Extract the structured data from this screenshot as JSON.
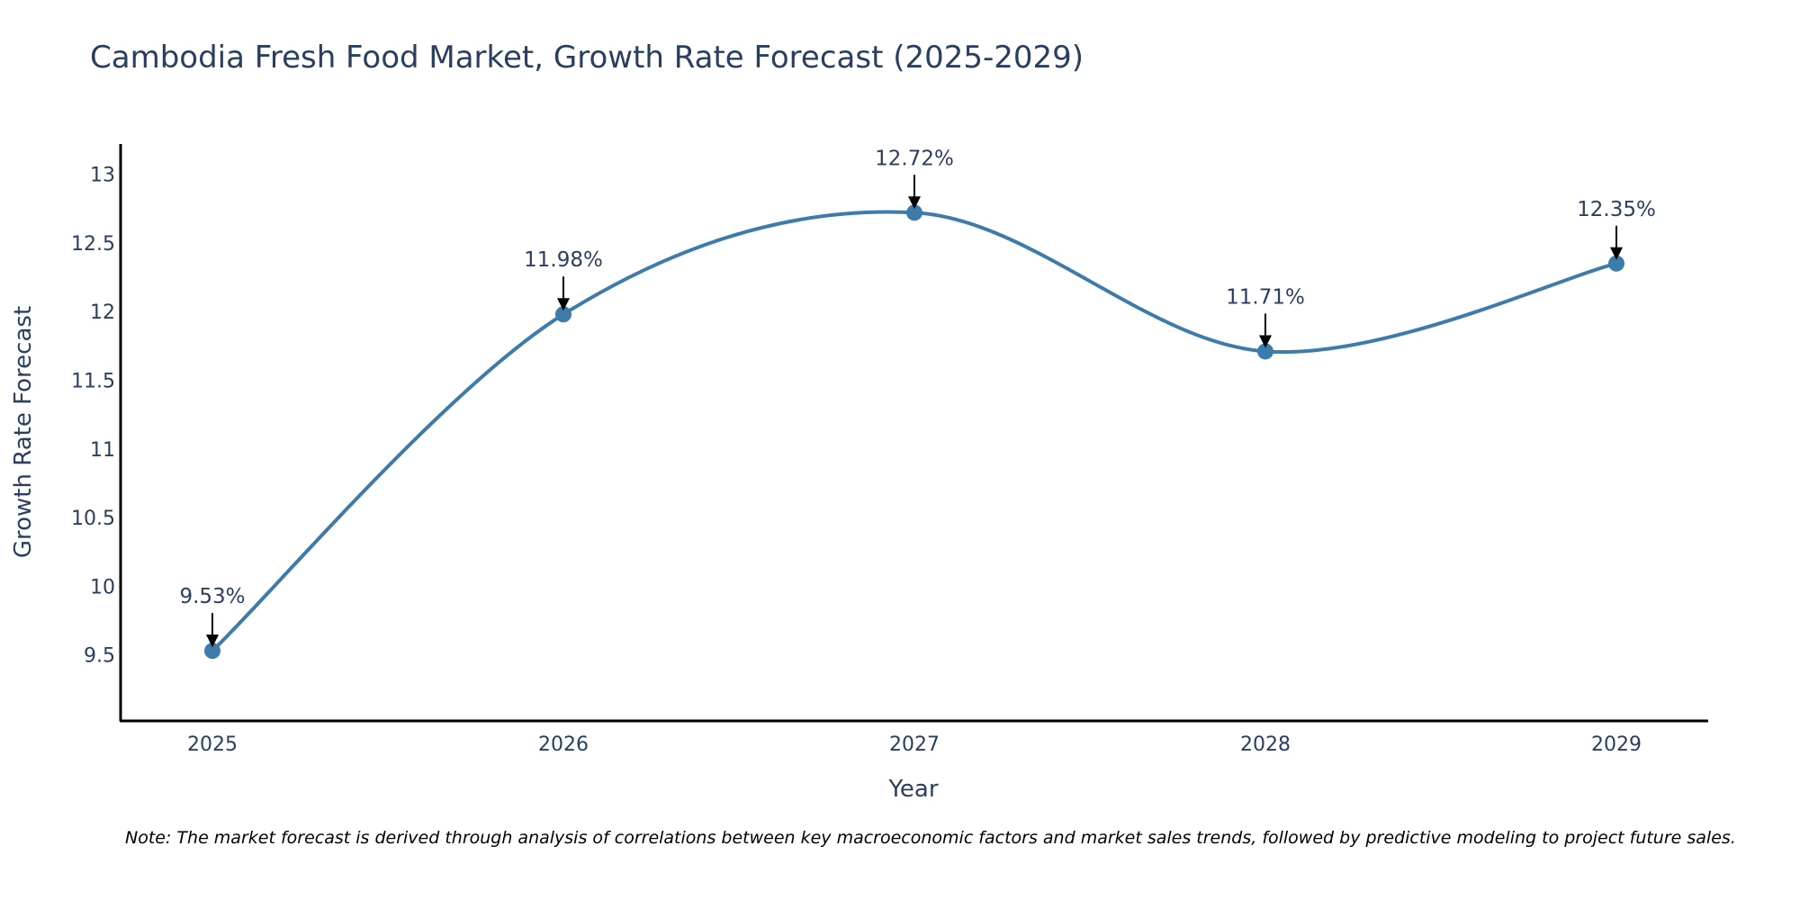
{
  "chart_data": {
    "type": "line",
    "title": "Cambodia Fresh Food Market, Growth Rate Forecast (2025-2029)",
    "xlabel": "Year",
    "ylabel": "Growth Rate Forecast",
    "categories": [
      "2025",
      "2026",
      "2027",
      "2028",
      "2029"
    ],
    "series": [
      {
        "name": "Growth Rate Forecast",
        "values": [
          9.53,
          11.98,
          12.72,
          11.71,
          12.35
        ],
        "labels": [
          "9.53%",
          "11.98%",
          "12.72%",
          "11.71%",
          "12.35%"
        ],
        "color": "#3d7caa"
      }
    ],
    "yticks": [
      "9.5",
      "10",
      "10.5",
      "11",
      "11.5",
      "12",
      "12.5",
      "13"
    ],
    "ylim": [
      9.02,
      13.22
    ],
    "grid": false,
    "line_shape": "spline",
    "note": "Note: The market forecast is derived through analysis of correlations between key macroeconomic factors and market sales trends, followed by predictive modeling to project future sales."
  }
}
